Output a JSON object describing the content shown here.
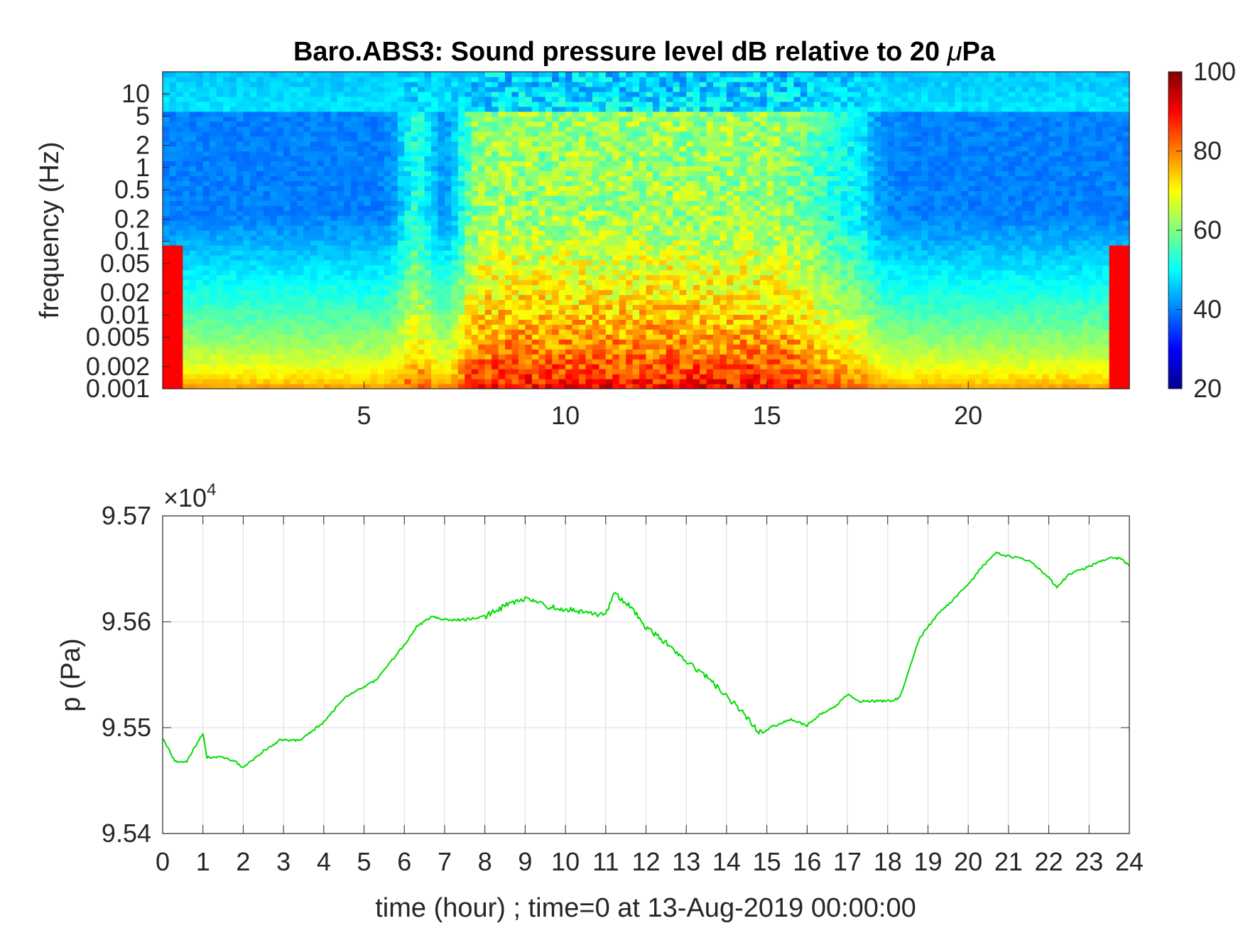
{
  "chart_data": [
    {
      "type": "heatmap",
      "title": "Baro.ABS3: Sound pressure level dB relative to 20 μPa",
      "title_main": "Baro.ABS3: Sound pressure level dB relative to 20 ",
      "title_mu": "μ",
      "title_end": "Pa",
      "xlabel": "",
      "ylabel": "frequency (Hz)",
      "xlim": [
        0,
        24
      ],
      "x_ticks": [
        5,
        10,
        15,
        20
      ],
      "y_scale": "log",
      "ylim": [
        0.001,
        20
      ],
      "y_ticks": [
        0.001,
        0.002,
        0.005,
        0.01,
        0.02,
        0.05,
        0.1,
        0.2,
        0.5,
        1,
        2,
        5,
        10
      ],
      "y_tick_labels": [
        "0.001",
        "0.002",
        "0.005",
        "0.01",
        "0.02",
        "0.05",
        "0.1",
        "0.2",
        "0.5",
        "1",
        "2",
        "5",
        "10"
      ],
      "colormap": "jet",
      "colorbar": {
        "range": [
          20,
          100
        ],
        "ticks": [
          20,
          40,
          60,
          80,
          100
        ]
      },
      "description_of_levels": {
        "high_activity_hours": [
          7.4,
          16.6
        ],
        "quiet_low_freq_dB": 80,
        "quiet_high_freq_dB": 40,
        "active_low_freq_dB": 92,
        "active_high_freq_dB": 62,
        "top_band_dB": 48
      }
    },
    {
      "type": "line",
      "title": "",
      "xlabel": "time (hour) ; time=0 at 13-Aug-2019 00:00:00",
      "ylabel": "p (Pa)",
      "y_multiplier_base": "×10",
      "y_multiplier_exp": "4",
      "xlim": [
        0,
        24
      ],
      "ylim": [
        9.54,
        9.57
      ],
      "x_ticks": [
        0,
        1,
        2,
        3,
        4,
        5,
        6,
        7,
        8,
        9,
        10,
        11,
        12,
        13,
        14,
        15,
        16,
        17,
        18,
        19,
        20,
        21,
        22,
        23,
        24
      ],
      "y_ticks": [
        9.54,
        9.55,
        9.56,
        9.57
      ],
      "grid": true,
      "line_color": "#00dd00",
      "series": [
        {
          "x": [
            0,
            0.3,
            0.6,
            1.0,
            1.1,
            1.5,
            1.8,
            2.0,
            2.4,
            2.9,
            3.4,
            4.0,
            4.5,
            5.3,
            6.0,
            6.3,
            6.7,
            7.0,
            7.5,
            8.0,
            8.5,
            9.0,
            9.5,
            10.0,
            10.5,
            11.0,
            11.2,
            11.6,
            12.0,
            12.5,
            13.0,
            13.5,
            14.0,
            14.4,
            14.8,
            15.2,
            15.6,
            16.0,
            16.3,
            16.7,
            17.0,
            17.3,
            18.0,
            18.3,
            18.8,
            19.2,
            19.6,
            20.0,
            20.3,
            20.7,
            21.0,
            21.5,
            22.0,
            22.2,
            22.5,
            23.0,
            23.5,
            23.8,
            24.0
          ],
          "y": [
            9.549,
            9.5468,
            9.5468,
            9.5495,
            9.5472,
            9.5472,
            9.5468,
            9.5462,
            9.5475,
            9.5488,
            9.5488,
            9.5505,
            9.5528,
            9.5545,
            9.5578,
            9.5595,
            9.5605,
            9.5602,
            9.5602,
            9.5605,
            9.5615,
            9.5622,
            9.5615,
            9.5612,
            9.5608,
            9.5606,
            9.5628,
            9.5615,
            9.5595,
            9.558,
            9.5562,
            9.5548,
            9.553,
            9.5515,
            9.5495,
            9.5502,
            9.5508,
            9.5502,
            9.5512,
            9.552,
            9.5532,
            9.5525,
            9.5525,
            9.5528,
            9.5585,
            9.5605,
            9.562,
            9.5635,
            9.565,
            9.5665,
            9.5662,
            9.5658,
            9.5642,
            9.5632,
            9.5645,
            9.5652,
            9.566,
            9.566,
            9.5652
          ]
        }
      ]
    }
  ]
}
